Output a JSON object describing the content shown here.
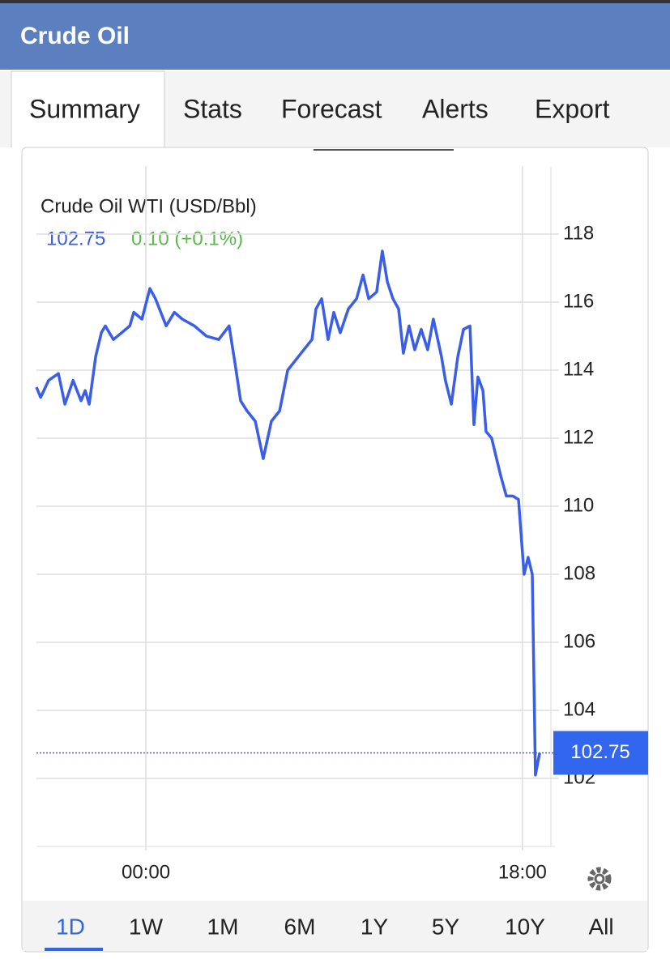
{
  "header": {
    "title": "Crude Oil"
  },
  "tabs": [
    "Summary",
    "Stats",
    "Forecast",
    "Alerts",
    "Export"
  ],
  "chart_data": {
    "type": "line",
    "title": "Crude Oil WTI (USD/Bbl)",
    "last_value": 102.75,
    "change": "0.10 (+0.1%)",
    "x": [
      -5.23,
      -5.03,
      -4.65,
      -4.18,
      -3.87,
      -3.48,
      -3.1,
      -2.9,
      -2.71,
      -2.4,
      -2.13,
      -1.94,
      -1.55,
      -1.16,
      -0.77,
      -0.58,
      -0.19,
      0.19,
      0.46,
      0.97,
      1.36,
      1.74,
      2.32,
      2.9,
      3.48,
      3.98,
      4.26,
      4.53,
      4.84,
      5.23,
      5.61,
      6.0,
      6.39,
      6.78,
      7.16,
      7.55,
      7.94,
      8.13,
      8.4,
      8.71,
      8.98,
      9.29,
      9.68,
      10.07,
      10.38,
      10.65,
      11.03,
      11.3,
      11.54,
      11.81,
      12.08,
      12.31,
      12.58,
      12.85,
      13.16,
      13.47,
      13.74,
      14.13,
      14.32,
      14.6,
      14.91,
      15.18,
      15.49,
      15.68,
      15.87,
      16.11,
      16.26,
      16.53,
      16.76,
      16.96,
      17.23,
      17.54,
      17.81,
      18.08,
      18.27,
      18.47,
      18.62,
      18.82
    ],
    "values": [
      113.5,
      113.2,
      113.7,
      113.9,
      113.0,
      113.7,
      113.1,
      113.4,
      113.0,
      114.4,
      115.1,
      115.3,
      114.9,
      115.1,
      115.3,
      115.7,
      115.5,
      116.4,
      116.1,
      115.3,
      115.7,
      115.5,
      115.3,
      115.0,
      114.9,
      115.3,
      114.2,
      113.1,
      112.8,
      112.5,
      111.4,
      112.5,
      112.8,
      114.0,
      114.3,
      114.6,
      114.9,
      115.8,
      116.1,
      114.9,
      115.7,
      115.1,
      115.8,
      116.1,
      116.8,
      116.1,
      116.3,
      117.5,
      116.6,
      116.1,
      115.8,
      114.5,
      115.3,
      114.6,
      115.2,
      114.6,
      115.5,
      114.4,
      113.7,
      113.0,
      114.4,
      115.2,
      115.3,
      112.4,
      113.8,
      113.4,
      112.2,
      112.0,
      111.4,
      110.9,
      110.3,
      110.3,
      110.2,
      108.0,
      108.5,
      108.0,
      102.1,
      102.75
    ],
    "color": "#3a5ee8",
    "xlim": [
      -5.23,
      19.36
    ],
    "xticks": [
      {
        "value": 0,
        "label": "00:00"
      },
      {
        "value": 18,
        "label": "18:00"
      }
    ],
    "ylim": [
      100,
      120
    ],
    "yticks": [
      102,
      104,
      106,
      108,
      110,
      112,
      114,
      116,
      118
    ],
    "grid": true
  },
  "ranges": [
    "1D",
    "1W",
    "1M",
    "6M",
    "1Y",
    "5Y",
    "10Y",
    "All"
  ]
}
